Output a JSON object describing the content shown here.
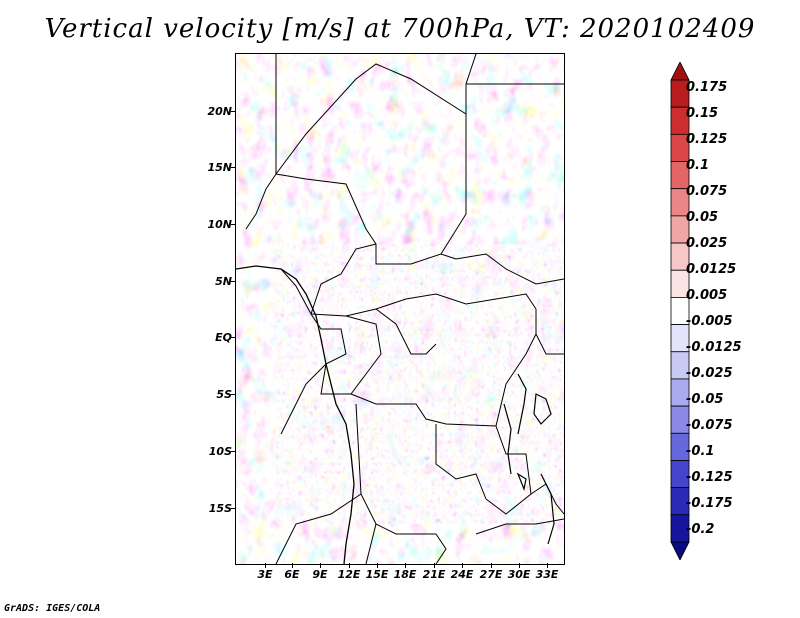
{
  "title": "Vertical velocity [m/s] at 700hPa, VT: 2020102409",
  "credit": "GrADS: IGES/COLA",
  "map": {
    "variable": "Vertical velocity",
    "units": "m/s",
    "level": "700hPa",
    "valid_time": "2020102409",
    "lat_labels": [
      "20N",
      "15N",
      "10N",
      "5N",
      "EQ",
      "5S",
      "10S",
      "15S"
    ],
    "lon_labels": [
      "3E",
      "6E",
      "9E",
      "12E",
      "15E",
      "18E",
      "21E",
      "24E",
      "27E",
      "30E",
      "33E"
    ]
  },
  "colorbar": {
    "labels": [
      "0.175",
      "0.15",
      "0.125",
      "0.1",
      "0.075",
      "0.05",
      "0.025",
      "0.0125",
      "0.005",
      "-0.005",
      "-0.0125",
      "-0.025",
      "-0.05",
      "-0.075",
      "-0.1",
      "-0.125",
      "-0.175",
      "-0.2"
    ],
    "colors": [
      "#a11010",
      "#b91c1c",
      "#cc2e2e",
      "#db4747",
      "#e46565",
      "#ec8585",
      "#f2a5a5",
      "#f7c6c6",
      "#fbe4e4",
      "#ffffff",
      "#e3e3fb",
      "#c9c9f5",
      "#aaaaee",
      "#8a8ae6",
      "#6767dc",
      "#4444cc",
      "#2a2ab8",
      "#15159e",
      "#0a0a80"
    ]
  }
}
